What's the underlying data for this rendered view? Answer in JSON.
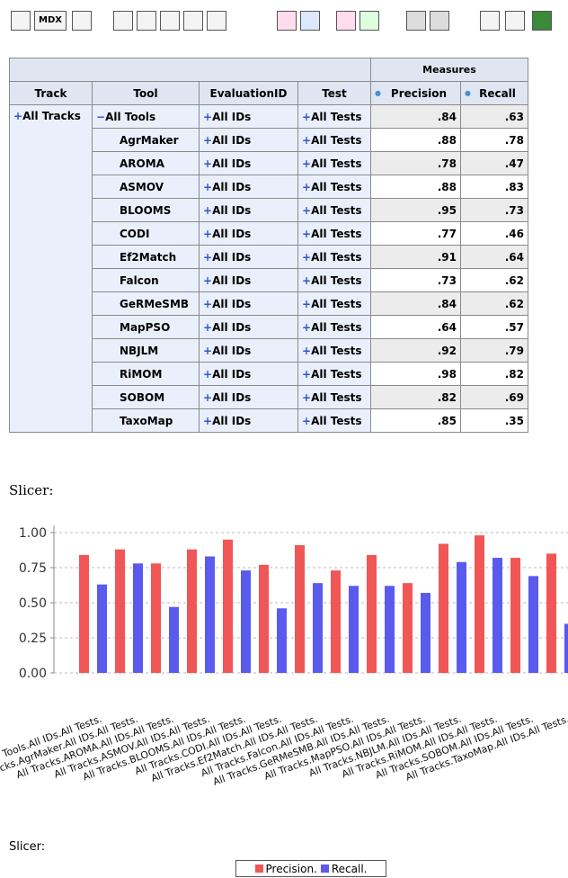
{
  "toolbar": {
    "mdx": "MDX"
  },
  "table": {
    "measures_header": "Measures",
    "headers": [
      "Track",
      "Tool",
      "EvaluationID",
      "Test",
      "Precision",
      "Recall"
    ],
    "track": "All Tracks",
    "rows": [
      [
        "All Tools",
        "All IDs",
        "All Tests",
        ".84",
        ".63"
      ],
      [
        "AgrMaker",
        "All IDs",
        "All Tests",
        ".88",
        ".78"
      ],
      [
        "AROMA",
        "All IDs",
        "All Tests",
        ".78",
        ".47"
      ],
      [
        "ASMOV",
        "All IDs",
        "All Tests",
        ".88",
        ".83"
      ],
      [
        "BLOOMS",
        "All IDs",
        "All Tests",
        ".95",
        ".73"
      ],
      [
        "CODI",
        "All IDs",
        "All Tests",
        ".77",
        ".46"
      ],
      [
        "Ef2Match",
        "All IDs",
        "All Tests",
        ".91",
        ".64"
      ],
      [
        "Falcon",
        "All IDs",
        "All Tests",
        ".73",
        ".62"
      ],
      [
        "GeRMeSMB",
        "All IDs",
        "All Tests",
        ".84",
        ".62"
      ],
      [
        "MapPSO",
        "All IDs",
        "All Tests",
        ".64",
        ".57"
      ],
      [
        "NBJLM",
        "All IDs",
        "All Tests",
        ".92",
        ".79"
      ],
      [
        "RiMOM",
        "All IDs",
        "All Tests",
        ".98",
        ".82"
      ],
      [
        "SOBOM",
        "All IDs",
        "All Tests",
        ".82",
        ".69"
      ],
      [
        "TaxoMap",
        "All IDs",
        "All Tests",
        ".85",
        ".35"
      ]
    ]
  },
  "slicer_top": "Slicer:",
  "slicer_bottom": "Slicer:",
  "chart_data": {
    "type": "bar",
    "categories": [
      "All Tracks.All Tools.All IDs.All Tests.",
      "All Tracks.AgrMaker.All IDs.All Tests.",
      "All Tracks.AROMA.All IDs.All Tests.",
      "All Tracks.ASMOV.All IDs.All Tests.",
      "All Tracks.BLOOMS.All IDs.All Tests.",
      "All Tracks.CODI.All IDs.All Tests.",
      "All Tracks.Ef2Match.All IDs.All Tests.",
      "All Tracks.Falcon.All IDs.All Tests.",
      "All Tracks.GeRMeSMB.All IDs.All Tests.",
      "All Tracks.MapPSO.All IDs.All Tests.",
      "All Tracks.NBJLM.All IDs.All Tests.",
      "All Tracks.RiMOM.All IDs.All Tests.",
      "All Tracks.SOBOM.All IDs.All Tests.",
      "All Tracks.TaxoMap.All IDs.All Tests."
    ],
    "series": [
      {
        "name": "Precision.",
        "color": "#f05656",
        "values": [
          0.84,
          0.88,
          0.78,
          0.88,
          0.95,
          0.77,
          0.91,
          0.73,
          0.84,
          0.64,
          0.92,
          0.98,
          0.82,
          0.85
        ]
      },
      {
        "name": "Recall.",
        "color": "#5a5aee",
        "values": [
          0.63,
          0.78,
          0.47,
          0.83,
          0.73,
          0.46,
          0.64,
          0.62,
          0.62,
          0.57,
          0.79,
          0.82,
          0.69,
          0.35
        ]
      }
    ],
    "ylim": [
      0,
      1.05
    ],
    "yticks": [
      {
        "value": 0,
        "label": "0.00"
      },
      {
        "value": 0.25,
        "label": "0.25"
      },
      {
        "value": 0.5,
        "label": "0.50"
      },
      {
        "value": 0.75,
        "label": "0.75"
      },
      {
        "value": 1,
        "label": "1.00"
      }
    ],
    "grid": true,
    "legend": "bottom"
  }
}
